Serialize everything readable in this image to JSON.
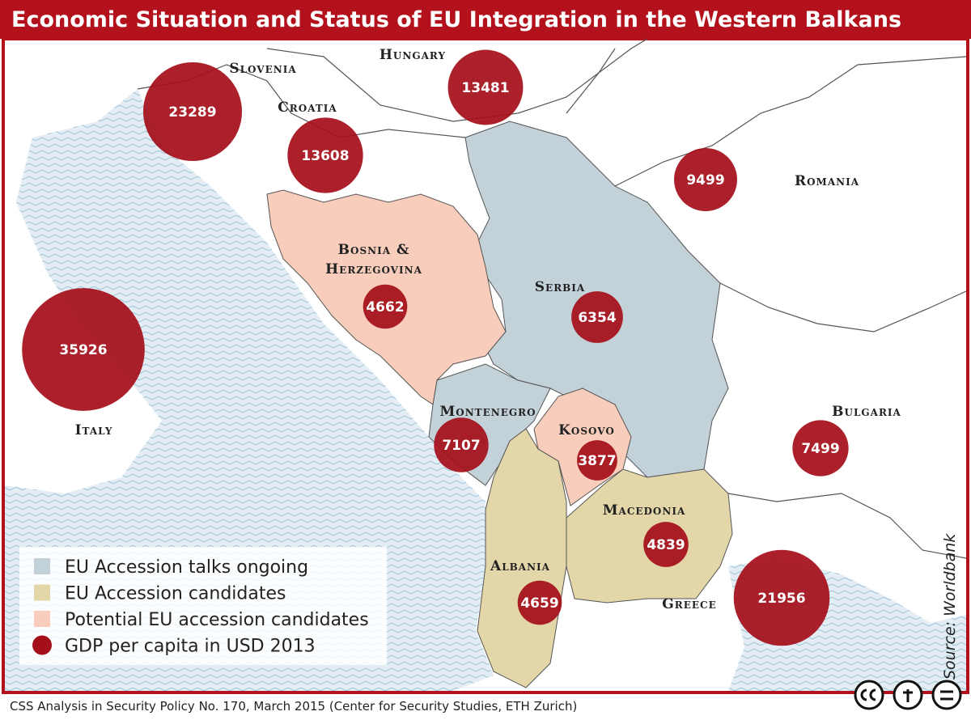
{
  "title": "Economic Situation and Status of EU Integration in the Western Balkans",
  "legend": [
    {
      "label": "EU Accession talks ongoing",
      "color": "#c3d1d8"
    },
    {
      "label": "EU Accession candidates",
      "color": "#e3d6a8"
    },
    {
      "label": "Potential EU accession candidates",
      "color": "#f8cdbb"
    },
    {
      "label": "GDP per capita in USD 2013",
      "color": "#a50f1a"
    }
  ],
  "countries": [
    {
      "name": [
        "Slovenia"
      ],
      "gdp": 23289
    },
    {
      "name": [
        "Hungary"
      ],
      "gdp": 13481
    },
    {
      "name": [
        "Croatia"
      ],
      "gdp": 13608
    },
    {
      "name": [
        "Romania"
      ],
      "gdp": 9499
    },
    {
      "name": [
        "Bosnia &",
        "Herzegovina"
      ],
      "gdp": 4662
    },
    {
      "name": [
        "Serbia"
      ],
      "gdp": 6354
    },
    {
      "name": [
        "Italy"
      ],
      "gdp": 35926
    },
    {
      "name": [
        "Montenegro"
      ],
      "gdp": 7107
    },
    {
      "name": [
        "Kosovo"
      ],
      "gdp": 3877
    },
    {
      "name": [
        "Bulgaria"
      ],
      "gdp": 7499
    },
    {
      "name": [
        "Macedonia"
      ],
      "gdp": 4839
    },
    {
      "name": [
        "Albania"
      ],
      "gdp": 4659
    },
    {
      "name": [
        "Greece"
      ],
      "gdp": 21956
    }
  ],
  "source": "Source: Worldbank",
  "footer": "CSS Analysis in Security Policy No. 170, March 2015 (Center for Security Studies, ETH Zurich)"
}
